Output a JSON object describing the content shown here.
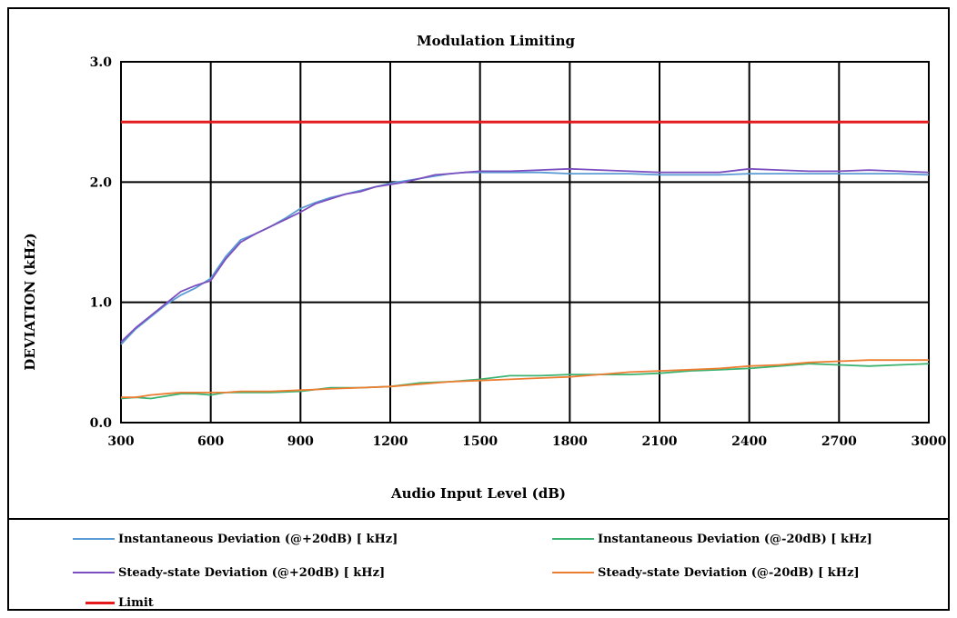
{
  "chart_data": {
    "type": "line",
    "title": "Modulation Limiting",
    "xlabel": "Audio Input Level (dB)",
    "ylabel": "DEVIATION (kHz)",
    "xlim": [
      300,
      3000
    ],
    "ylim": [
      0,
      3
    ],
    "x_ticks": [
      "300",
      "600",
      "900",
      "1200",
      "1500",
      "1800",
      "2100",
      "2400",
      "2700",
      "3000"
    ],
    "y_ticks": [
      "0.0",
      "1.0",
      "2.0",
      "3.0"
    ],
    "grid": true,
    "legend_position": "bottom",
    "series": [
      {
        "name": "Instantaneous Deviation (@+20dB) [ kHz]",
        "color": "#5b9bd5",
        "x": [
          300,
          350,
          400,
          450,
          500,
          550,
          600,
          650,
          700,
          750,
          800,
          850,
          900,
          950,
          1000,
          1050,
          1100,
          1150,
          1200,
          1250,
          1300,
          1350,
          1400,
          1450,
          1500,
          1600,
          1700,
          1800,
          1900,
          2000,
          2100,
          2200,
          2300,
          2400,
          2500,
          2600,
          2700,
          2800,
          2900,
          3000
        ],
        "values": [
          0.65,
          0.78,
          0.88,
          0.98,
          1.06,
          1.12,
          1.2,
          1.38,
          1.52,
          1.57,
          1.63,
          1.7,
          1.78,
          1.83,
          1.87,
          1.9,
          1.93,
          1.96,
          1.99,
          2.01,
          2.03,
          2.05,
          2.07,
          2.08,
          2.08,
          2.08,
          2.08,
          2.07,
          2.07,
          2.07,
          2.06,
          2.06,
          2.06,
          2.07,
          2.07,
          2.07,
          2.07,
          2.07,
          2.07,
          2.06
        ]
      },
      {
        "name": "Instantaneous Deviation (@-20dB) [ kHz]",
        "color": "#3cb371",
        "x": [
          300,
          350,
          400,
          450,
          500,
          550,
          600,
          650,
          700,
          800,
          900,
          1000,
          1100,
          1200,
          1300,
          1400,
          1500,
          1600,
          1700,
          1800,
          1900,
          2000,
          2100,
          2200,
          2300,
          2400,
          2500,
          2600,
          2700,
          2800,
          2900,
          3000
        ],
        "values": [
          0.2,
          0.21,
          0.2,
          0.22,
          0.24,
          0.24,
          0.23,
          0.25,
          0.25,
          0.25,
          0.26,
          0.29,
          0.29,
          0.3,
          0.33,
          0.34,
          0.36,
          0.39,
          0.39,
          0.4,
          0.4,
          0.4,
          0.41,
          0.43,
          0.44,
          0.45,
          0.47,
          0.49,
          0.48,
          0.47,
          0.48,
          0.49
        ]
      },
      {
        "name": "Steady-state Deviation (@+20dB) [ kHz]",
        "color": "#7b4fbf",
        "x": [
          300,
          350,
          400,
          450,
          500,
          550,
          600,
          650,
          700,
          750,
          800,
          850,
          900,
          950,
          1000,
          1050,
          1100,
          1150,
          1200,
          1250,
          1300,
          1350,
          1400,
          1450,
          1500,
          1600,
          1700,
          1800,
          1900,
          2000,
          2100,
          2200,
          2300,
          2400,
          2500,
          2600,
          2700,
          2800,
          2900,
          3000
        ],
        "values": [
          0.67,
          0.79,
          0.89,
          0.99,
          1.09,
          1.14,
          1.18,
          1.36,
          1.5,
          1.57,
          1.63,
          1.69,
          1.75,
          1.82,
          1.86,
          1.9,
          1.92,
          1.96,
          1.98,
          2.0,
          2.03,
          2.06,
          2.07,
          2.08,
          2.09,
          2.09,
          2.1,
          2.11,
          2.1,
          2.09,
          2.08,
          2.08,
          2.08,
          2.11,
          2.1,
          2.09,
          2.09,
          2.1,
          2.09,
          2.08
        ]
      },
      {
        "name": "Steady-state Deviation (@-20dB) [ kHz]",
        "color": "#ed7d31",
        "x": [
          300,
          350,
          400,
          450,
          500,
          550,
          600,
          650,
          700,
          800,
          900,
          1000,
          1100,
          1200,
          1300,
          1400,
          1500,
          1600,
          1700,
          1800,
          1900,
          2000,
          2100,
          2200,
          2300,
          2400,
          2500,
          2600,
          2700,
          2800,
          2900,
          3000
        ],
        "values": [
          0.21,
          0.21,
          0.23,
          0.24,
          0.25,
          0.25,
          0.25,
          0.25,
          0.26,
          0.26,
          0.27,
          0.28,
          0.29,
          0.3,
          0.32,
          0.34,
          0.35,
          0.36,
          0.37,
          0.38,
          0.4,
          0.42,
          0.43,
          0.44,
          0.45,
          0.47,
          0.48,
          0.5,
          0.51,
          0.52,
          0.52,
          0.52
        ]
      },
      {
        "name": "Limit",
        "color": "#e41a1c",
        "x": [
          300,
          3000
        ],
        "values": [
          2.5,
          2.5
        ]
      }
    ]
  }
}
